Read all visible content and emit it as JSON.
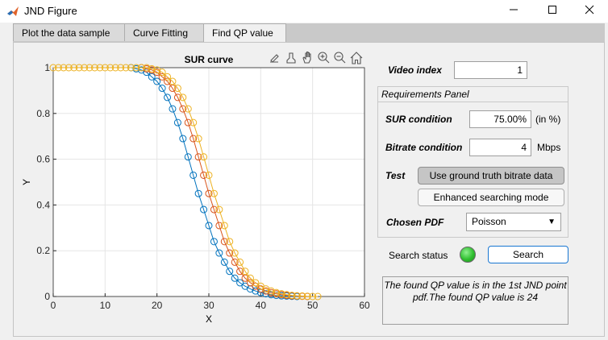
{
  "window": {
    "title": "JND Figure",
    "icons": {
      "app": "matlab-icon",
      "minimize": "minimize-icon",
      "maximize": "maximize-icon",
      "close": "close-icon"
    }
  },
  "tabs": [
    {
      "label": "Plot the data sample",
      "active": false
    },
    {
      "label": "Curve Fitting",
      "active": false
    },
    {
      "label": "Find QP value",
      "active": true
    }
  ],
  "toolbar_icons": [
    "export-icon",
    "brush-icon",
    "pan-hand-icon",
    "zoom-in-icon",
    "zoom-out-icon",
    "home-icon"
  ],
  "video_index": {
    "label": "Video index",
    "value": "1"
  },
  "requirements_panel": {
    "title": "Requirements Panel",
    "sur_condition": {
      "label": "SUR condition",
      "value": "75.00%",
      "unit": "(in %)"
    },
    "bitrate_condition": {
      "label": "Bitrate condition",
      "value": "4",
      "unit": "Mbps"
    },
    "test": {
      "label": "Test",
      "button1": "Use ground truth bitrate data",
      "button2": "Enhanced searching mode"
    },
    "chosen_pdf": {
      "label": "Chosen PDF",
      "selected": "Poisson"
    }
  },
  "search": {
    "status_label": "Search status",
    "button": "Search",
    "lamp_color": "#2fbf2f"
  },
  "result_text": "The found QP value is in the 1st JND point pdf.The found QP value is 24",
  "chart_data": {
    "type": "line",
    "title": "SUR curve",
    "xlabel": "X",
    "ylabel": "Y",
    "xlim": [
      0,
      60
    ],
    "ylim": [
      0,
      1
    ],
    "xticks": [
      "0",
      "10",
      "20",
      "30",
      "40",
      "50",
      "60"
    ],
    "yticks": [
      "0",
      "0.2",
      "0.4",
      "0.6",
      "0.8",
      "1"
    ],
    "grid": true,
    "marker": "circle",
    "series": [
      {
        "color": "#0072bd",
        "x": [
          15,
          16,
          17,
          18,
          19,
          20,
          21,
          22,
          23,
          24,
          25,
          26,
          27,
          28,
          29,
          30,
          31,
          32,
          33,
          34,
          35,
          36,
          37,
          38,
          39,
          40,
          41,
          42,
          43,
          44,
          45,
          46,
          47
        ],
        "y": [
          1,
          0.995,
          0.99,
          0.98,
          0.96,
          0.94,
          0.91,
          0.87,
          0.82,
          0.76,
          0.69,
          0.61,
          0.53,
          0.45,
          0.38,
          0.31,
          0.24,
          0.19,
          0.15,
          0.11,
          0.08,
          0.06,
          0.045,
          0.033,
          0.024,
          0.017,
          0.012,
          0.008,
          0.005,
          0.003,
          0.002,
          0.001,
          0
        ]
      },
      {
        "color": "#d95319",
        "x": [
          17,
          18,
          19,
          20,
          21,
          22,
          23,
          24,
          25,
          26,
          27,
          28,
          29,
          30,
          31,
          32,
          33,
          34,
          35,
          36,
          37,
          38,
          39,
          40,
          41,
          42,
          43,
          44,
          45,
          46,
          47,
          48,
          49
        ],
        "y": [
          1,
          0.995,
          0.99,
          0.98,
          0.96,
          0.94,
          0.91,
          0.87,
          0.82,
          0.76,
          0.69,
          0.61,
          0.53,
          0.45,
          0.38,
          0.31,
          0.24,
          0.19,
          0.15,
          0.11,
          0.08,
          0.06,
          0.045,
          0.033,
          0.024,
          0.017,
          0.012,
          0.008,
          0.005,
          0.003,
          0.002,
          0.001,
          0
        ]
      },
      {
        "color": "#edb120",
        "x": [
          0,
          1,
          2,
          3,
          4,
          5,
          6,
          7,
          8,
          9,
          10,
          11,
          12,
          13,
          14,
          15,
          16,
          17,
          18,
          19,
          20,
          21,
          22,
          23,
          24,
          25,
          26,
          27,
          28,
          29,
          30,
          31,
          32,
          33,
          34,
          35,
          36,
          37,
          38,
          39,
          40,
          41,
          42,
          43,
          44,
          45,
          46,
          47,
          48,
          49,
          50,
          51
        ],
        "y": [
          1,
          1,
          1,
          1,
          1,
          1,
          1,
          1,
          1,
          1,
          1,
          1,
          1,
          1,
          1,
          1,
          1,
          1,
          1,
          0.995,
          0.99,
          0.98,
          0.96,
          0.94,
          0.91,
          0.87,
          0.82,
          0.76,
          0.69,
          0.61,
          0.53,
          0.45,
          0.38,
          0.31,
          0.24,
          0.19,
          0.15,
          0.11,
          0.08,
          0.06,
          0.045,
          0.033,
          0.024,
          0.017,
          0.012,
          0.008,
          0.005,
          0.003,
          0.002,
          0.001,
          0,
          0
        ]
      }
    ]
  }
}
